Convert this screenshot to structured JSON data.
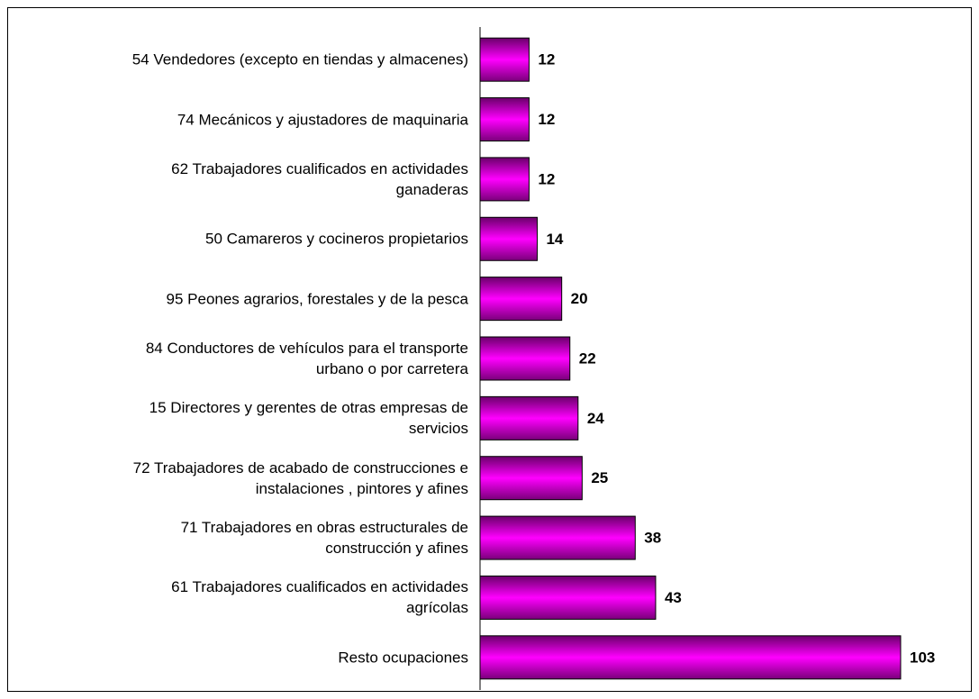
{
  "chart_data": {
    "type": "barh",
    "categories": [
      "54 Vendedores (excepto en tiendas y almacenes)",
      "74 Mecánicos y ajustadores de maquinaria",
      "62 Trabajadores cualificados en actividades\nganaderas",
      "50 Camareros y cocineros propietarios",
      "95 Peones agrarios, forestales y de la pesca",
      "84 Conductores de vehículos para el transporte\nurbano o por carretera",
      "15 Directores y gerentes de otras empresas de\nservicios",
      "72 Trabajadores de acabado de construcciones e\ninstalaciones , pintores y afines",
      "71 Trabajadores en obras estructurales de\nconstrucción y afines",
      "61 Trabajadores cualificados en actividades\nagrícolas",
      "Resto ocupaciones"
    ],
    "values": [
      12,
      12,
      12,
      14,
      20,
      22,
      24,
      25,
      38,
      43,
      103
    ],
    "color": "#ff00ff"
  }
}
